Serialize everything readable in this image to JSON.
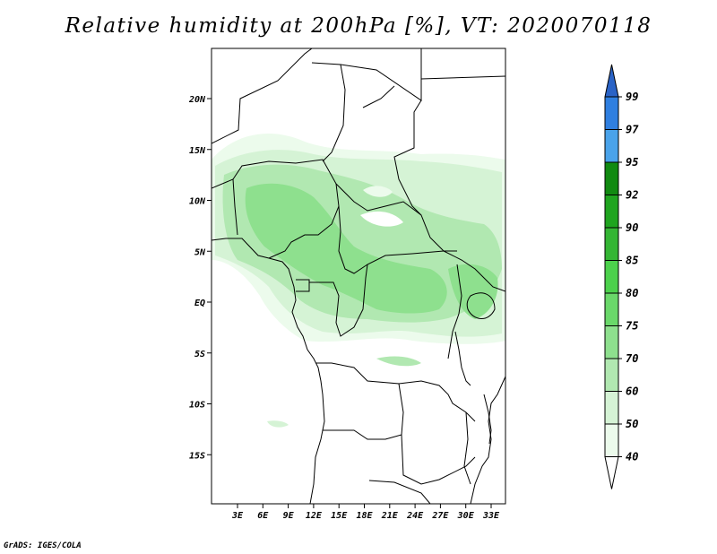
{
  "title": "Relative humidity at 200hPa [%], VT: 2020070118",
  "footer": "GrADS: IGES/COLA",
  "map": {
    "lat_labels": [
      "20N",
      "15N",
      "10N",
      "5N",
      "EQ",
      "5S",
      "10S",
      "15S"
    ],
    "lon_labels": [
      "3E",
      "6E",
      "9E",
      "12E",
      "15E",
      "18E",
      "21E",
      "24E",
      "27E",
      "30E",
      "33E"
    ]
  },
  "colorbar": {
    "levels": [
      "99",
      "97",
      "95",
      "92",
      "90",
      "85",
      "80",
      "75",
      "70",
      "60",
      "50",
      "40"
    ],
    "colors": [
      "#2a63c6",
      "#2f7fe0",
      "#4aa3ea",
      "#118a11",
      "#1fa51f",
      "#34b634",
      "#4cd14c",
      "#6ad86a",
      "#8ee08e",
      "#b1e8b1",
      "#d5f3d5",
      "#ecfbec"
    ]
  }
}
